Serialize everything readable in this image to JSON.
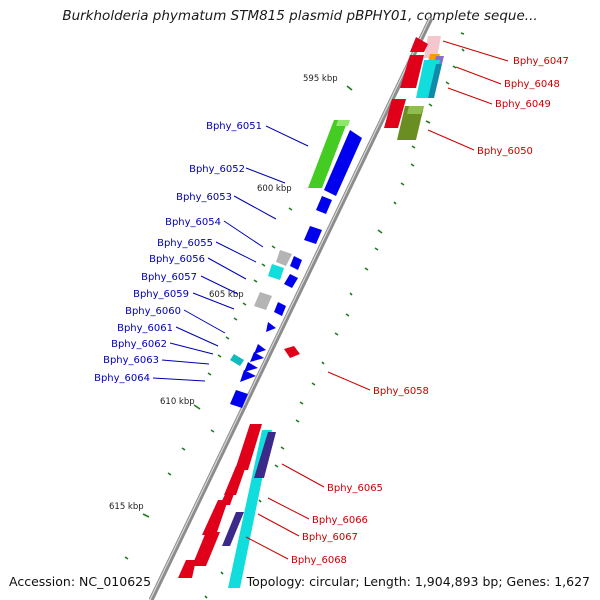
{
  "title": "Burkholderia phymatum STM815 plasmid pBPHY01, complete seque...",
  "footer": {
    "accession": "Accession: NC_010625",
    "stats": "Topology: circular; Length: 1,904,893 bp; Genes: 1,627"
  },
  "colors": {
    "backbone": "#8c8c8c",
    "forward_label": "#cc0000",
    "reverse_label": "#0000b4",
    "tick": "#1f7a1f"
  },
  "scale_labels": [
    "595 kbp",
    "600 kbp",
    "605 kbp",
    "610 kbp",
    "615 kbp"
  ],
  "genes_right": [
    {
      "name": "Bphy_6047"
    },
    {
      "name": "Bphy_6048"
    },
    {
      "name": "Bphy_6049"
    },
    {
      "name": "Bphy_6050"
    },
    {
      "name": "Bphy_6058"
    },
    {
      "name": "Bphy_6065"
    },
    {
      "name": "Bphy_6066"
    },
    {
      "name": "Bphy_6067"
    },
    {
      "name": "Bphy_6068"
    }
  ],
  "genes_left": [
    {
      "name": "Bphy_6051"
    },
    {
      "name": "Bphy_6052"
    },
    {
      "name": "Bphy_6053"
    },
    {
      "name": "Bphy_6054"
    },
    {
      "name": "Bphy_6055"
    },
    {
      "name": "Bphy_6056"
    },
    {
      "name": "Bphy_6057"
    },
    {
      "name": "Bphy_6059"
    },
    {
      "name": "Bphy_6060"
    },
    {
      "name": "Bphy_6061"
    },
    {
      "name": "Bphy_6062"
    },
    {
      "name": "Bphy_6063"
    },
    {
      "name": "Bphy_6064"
    }
  ]
}
